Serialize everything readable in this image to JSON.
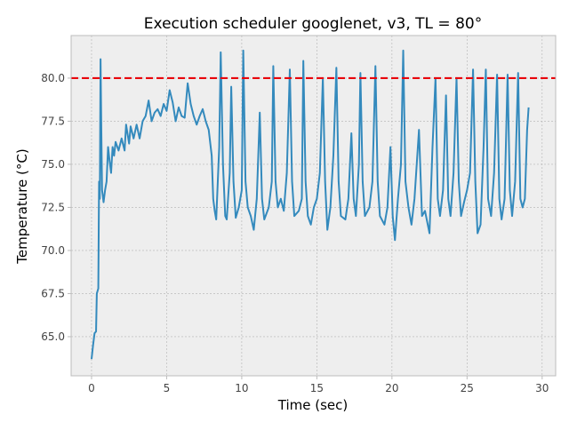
{
  "chart_data": {
    "type": "line",
    "title": "Execution scheduler googlenet, v3, TL = 80°",
    "x_label": "Time (sec)",
    "y_label": "Temperature (°C)",
    "xlim": [
      -1.36,
      30.9
    ],
    "ylim": [
      62.73,
      82.47
    ],
    "xticks": [
      0,
      5,
      10,
      15,
      20,
      25,
      30
    ],
    "yticks": [
      {
        "value": 65,
        "label": "65.0"
      },
      {
        "value": 67.5,
        "label": "67.5"
      },
      {
        "value": 70,
        "label": "70.0"
      },
      {
        "value": 72.5,
        "label": "72.5"
      },
      {
        "value": 75,
        "label": "75.0"
      },
      {
        "value": 77.5,
        "label": "77.5"
      },
      {
        "value": 80,
        "label": "80.0"
      }
    ],
    "grid": true,
    "threshold": {
      "value": 80,
      "color": "#e8000b"
    },
    "x": [
      0,
      0.1,
      0.2,
      0.3,
      0.35,
      0.45,
      0.5,
      0.55,
      0.6,
      0.65,
      0.7,
      0.8,
      0.9,
      1.0,
      1.1,
      1.2,
      1.3,
      1.4,
      1.5,
      1.6,
      1.8,
      2.0,
      2.2,
      2.3,
      2.5,
      2.6,
      2.8,
      3.0,
      3.2,
      3.4,
      3.6,
      3.8,
      4.0,
      4.2,
      4.4,
      4.6,
      4.8,
      5.0,
      5.2,
      5.4,
      5.6,
      5.8,
      6.0,
      6.2,
      6.4,
      6.6,
      6.8,
      7.0,
      7.2,
      7.4,
      7.6,
      7.8,
      8.0,
      8.1,
      8.2,
      8.3,
      8.5,
      8.6,
      8.75,
      8.9,
      9.0,
      9.2,
      9.3,
      9.45,
      9.6,
      9.8,
      10.0,
      10.1,
      10.25,
      10.4,
      10.6,
      10.8,
      11.0,
      11.2,
      11.35,
      11.5,
      11.8,
      12.0,
      12.1,
      12.25,
      12.4,
      12.6,
      12.8,
      13.0,
      13.2,
      13.35,
      13.5,
      13.8,
      14.0,
      14.1,
      14.25,
      14.4,
      14.6,
      14.8,
      15.0,
      15.2,
      15.4,
      15.55,
      15.7,
      15.9,
      16.1,
      16.3,
      16.45,
      16.6,
      16.9,
      17.1,
      17.3,
      17.45,
      17.6,
      17.8,
      17.9,
      18.05,
      18.2,
      18.5,
      18.7,
      18.9,
      19.05,
      19.2,
      19.5,
      19.7,
      19.9,
      20.05,
      20.2,
      20.4,
      20.6,
      20.75,
      20.9,
      21.1,
      21.3,
      21.5,
      21.8,
      22.0,
      22.2,
      22.5,
      22.7,
      22.9,
      23.05,
      23.2,
      23.4,
      23.6,
      23.75,
      23.9,
      24.1,
      24.3,
      24.45,
      24.6,
      24.8,
      25.0,
      25.2,
      25.4,
      25.55,
      25.7,
      25.9,
      26.1,
      26.25,
      26.4,
      26.6,
      26.8,
      27.0,
      27.15,
      27.3,
      27.5,
      27.7,
      27.85,
      28.0,
      28.2,
      28.4,
      28.55,
      28.7,
      28.85,
      29.0,
      29.1
    ],
    "series": [
      {
        "color": "#348abd",
        "values": [
          63.7,
          64.5,
          65.2,
          65.3,
          67.5,
          67.8,
          74,
          73,
          81.1,
          77,
          73.5,
          72.8,
          73.5,
          74,
          76,
          75.2,
          74.5,
          76,
          75.5,
          76.3,
          75.8,
          76.5,
          75.8,
          77.3,
          76.2,
          77.2,
          76.5,
          77.3,
          76.5,
          77.5,
          77.8,
          78.7,
          77.5,
          78,
          78.2,
          77.8,
          78.5,
          78.1,
          79.3,
          78.6,
          77.5,
          78.3,
          77.8,
          77.7,
          79.7,
          78.5,
          77.8,
          77.3,
          77.8,
          78.2,
          77.5,
          77,
          75.5,
          73,
          72.3,
          71.8,
          76,
          81.5,
          75,
          72,
          71.8,
          74.5,
          79.5,
          74,
          71.9,
          72.5,
          73.5,
          81.6,
          74,
          72.5,
          72,
          71.2,
          73,
          78,
          73,
          71.8,
          72.5,
          74,
          80.7,
          74,
          72.5,
          73,
          72.3,
          74.5,
          80.5,
          74,
          72,
          72.3,
          73,
          81,
          74,
          72,
          71.5,
          72.5,
          73,
          74.5,
          80,
          74,
          71.2,
          72.5,
          75.5,
          80.6,
          74,
          72,
          71.8,
          73,
          76.8,
          73,
          72,
          75,
          80.3,
          74,
          72,
          72.5,
          74,
          80.7,
          74,
          72,
          71.5,
          72.5,
          76,
          72,
          70.6,
          73,
          75,
          81.6,
          74,
          72.5,
          71.5,
          73,
          77,
          72,
          72.3,
          71,
          76,
          80,
          73,
          72,
          73.5,
          79,
          73,
          72,
          74.5,
          80,
          74,
          72,
          72.8,
          73.5,
          74.5,
          80.5,
          74,
          71,
          71.5,
          76,
          80.5,
          73,
          72,
          74.5,
          80.2,
          73,
          71.8,
          73,
          80.2,
          73.5,
          72,
          74,
          80.3,
          73,
          72.5,
          73,
          77,
          78.3
        ]
      }
    ]
  }
}
